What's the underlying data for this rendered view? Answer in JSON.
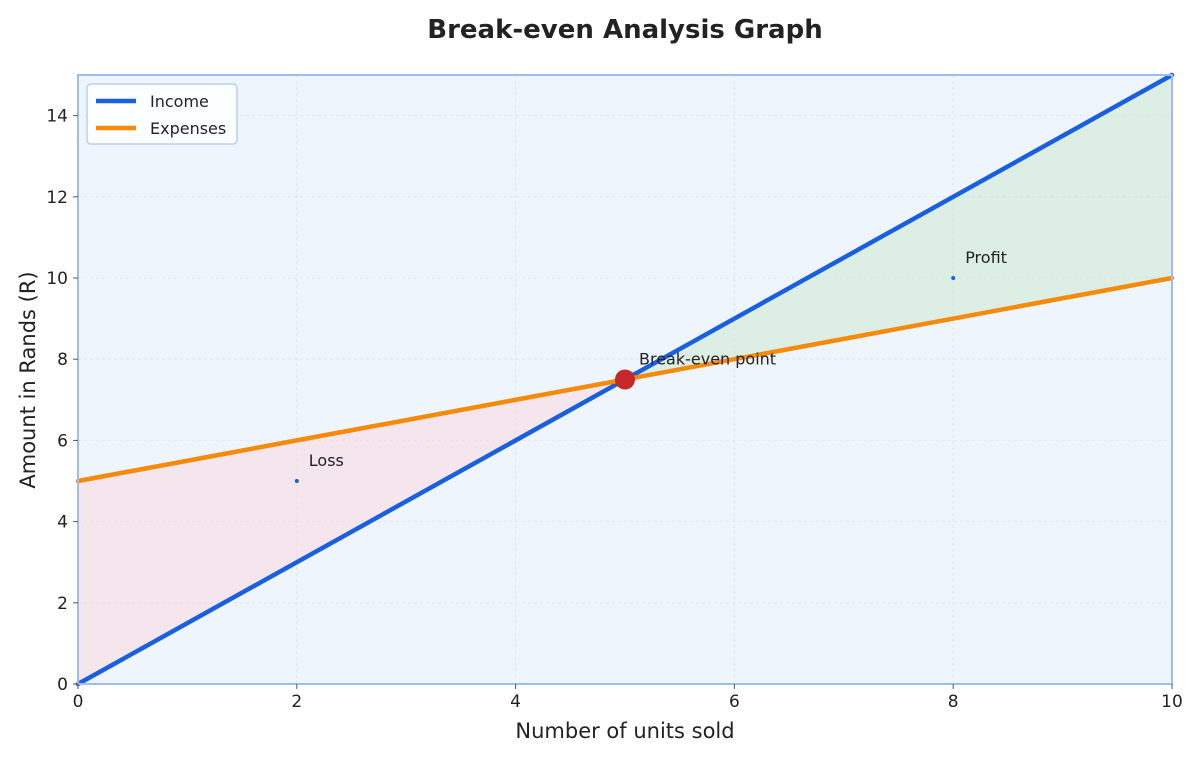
{
  "chart_data": {
    "type": "line",
    "title": "Break-even Analysis Graph",
    "xlabel": "Number of units sold",
    "ylabel": "Amount in Rands (R)",
    "xlim": [
      0,
      10
    ],
    "ylim": [
      0,
      15
    ],
    "xticks": [
      0,
      2,
      4,
      6,
      8,
      10
    ],
    "yticks": [
      0,
      2,
      4,
      6,
      8,
      10,
      12,
      14
    ],
    "grid": true,
    "legend_position": "top-left",
    "series": [
      {
        "name": "Income",
        "x": [
          0,
          10
        ],
        "y": [
          0,
          15
        ],
        "color": "#1a5fe0"
      },
      {
        "name": "Expenses",
        "x": [
          0,
          10
        ],
        "y": [
          5,
          10
        ],
        "color": "#f58a0b"
      }
    ],
    "break_even": {
      "x": 5,
      "y": 7.5,
      "label": "Break-even point",
      "color": "#c62828"
    },
    "regions": [
      {
        "label": "Loss",
        "x_range": [
          0,
          5
        ],
        "color": "#f9d9df",
        "marker": {
          "x": 2,
          "y": 5
        }
      },
      {
        "label": "Profit",
        "x_range": [
          5,
          10
        ],
        "color": "#cfe8cf",
        "marker": {
          "x": 8,
          "y": 10
        }
      }
    ],
    "colors": {
      "plot_background": "#eef5fd",
      "frame": "#9dbdf0",
      "grid": "#dde6f3",
      "annotation_marker": "#1a5fe0"
    }
  }
}
